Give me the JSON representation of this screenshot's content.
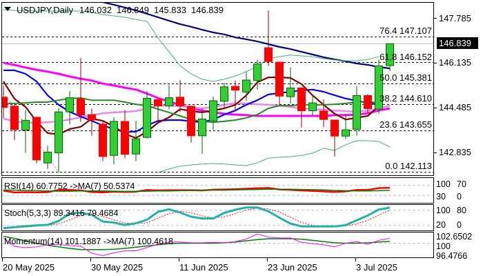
{
  "header": {
    "symbol_timeframe": "USDJPY,Daily",
    "open": "146.032",
    "high": "146.849",
    "low": "145.833",
    "close": "146.839"
  },
  "colors": {
    "bull": "#32CD32",
    "bull_edge": "#006400",
    "bear": "#FF0000",
    "bear_edge": "#8B0000"
  },
  "chart_data": {
    "type": "candlestick",
    "title": "USDJPY,Daily",
    "ylim": [
      141.9,
      148.45
    ],
    "price_ticks": [
      "147.785",
      "146.135",
      "144.485",
      "142.835"
    ],
    "price_tick_values": [
      147.785,
      146.135,
      144.485,
      142.835
    ],
    "current_price": "146.839",
    "current_price_value": 146.839,
    "date_labels": [
      "20 May 2025",
      "30 May 2025",
      "11 Jun 2025",
      "23 Jun 2025",
      "3 Jul 2025"
    ],
    "date_label_bar_index": [
      0,
      8,
      16,
      24,
      32
    ],
    "fib_levels": [
      {
        "label": "76.4 147.107",
        "value": 147.107
      },
      {
        "label": "61.8 146.152",
        "value": 146.152
      },
      {
        "label": "50.0 145.381",
        "value": 145.381
      },
      {
        "label": "38.2 144.610",
        "value": 144.61
      },
      {
        "label": "23.6 143.655",
        "value": 143.655
      },
      {
        "label": "0.0 142.113",
        "value": 142.113
      }
    ],
    "candles_ohlc": [
      [
        144.87,
        145.3,
        144.1,
        144.49
      ],
      [
        144.54,
        144.6,
        143.3,
        143.68
      ],
      [
        143.66,
        144.4,
        142.82,
        144.02
      ],
      [
        144.13,
        144.15,
        142.44,
        142.56
      ],
      [
        142.45,
        143.09,
        142.23,
        142.85
      ],
      [
        142.82,
        144.47,
        142.1,
        144.33
      ],
      [
        144.33,
        145.1,
        143.88,
        144.85
      ],
      [
        144.81,
        146.31,
        143.96,
        144.21
      ],
      [
        144.23,
        144.45,
        143.45,
        144.03
      ],
      [
        143.88,
        144.0,
        142.52,
        142.69
      ],
      [
        142.73,
        144.13,
        142.4,
        143.98
      ],
      [
        143.98,
        144.4,
        142.63,
        142.77
      ],
      [
        142.78,
        144.0,
        142.52,
        143.34
      ],
      [
        143.39,
        145.1,
        143.35,
        144.83
      ],
      [
        144.78,
        144.8,
        143.96,
        144.55
      ],
      [
        144.55,
        145.32,
        144.43,
        144.85
      ],
      [
        144.87,
        145.5,
        144.34,
        144.55
      ],
      [
        144.54,
        144.56,
        143.2,
        143.45
      ],
      [
        143.45,
        144.47,
        142.79,
        144.07
      ],
      [
        144.0,
        144.89,
        143.67,
        144.74
      ],
      [
        144.72,
        145.4,
        144.47,
        145.25
      ],
      [
        145.27,
        145.48,
        144.34,
        145.13
      ],
      [
        145.06,
        145.8,
        144.74,
        145.5
      ],
      [
        145.48,
        146.25,
        145.15,
        146.09
      ],
      [
        146.69,
        148.06,
        146.03,
        146.18
      ],
      [
        146.16,
        146.18,
        144.59,
        144.91
      ],
      [
        144.89,
        145.97,
        144.64,
        145.21
      ],
      [
        145.21,
        145.23,
        143.75,
        144.37
      ],
      [
        144.37,
        144.96,
        144.2,
        144.66
      ],
      [
        144.36,
        144.79,
        143.77,
        144.05
      ],
      [
        144.03,
        144.05,
        142.69,
        143.44
      ],
      [
        143.44,
        144.26,
        143.33,
        143.67
      ],
      [
        143.69,
        145.27,
        143.45,
        144.93
      ],
      [
        144.93,
        144.99,
        144.3,
        144.45
      ],
      [
        144.43,
        146.25,
        144.26,
        146.02
      ],
      [
        146.032,
        146.849,
        145.833,
        146.839
      ]
    ],
    "overlays": [
      {
        "name": "ma-navy",
        "color": "#000080",
        "width": 2.2,
        "values": [
          null,
          null,
          null,
          null,
          null,
          null,
          null,
          null,
          148.5,
          148.37,
          148.27,
          148.17,
          148.06,
          147.94,
          147.81,
          147.68,
          147.56,
          147.46,
          147.35,
          147.25,
          147.18,
          147.07,
          147.0,
          146.92,
          146.82,
          146.72,
          146.64,
          146.54,
          146.44,
          146.34,
          146.26,
          146.19,
          146.11,
          146.06,
          145.98,
          145.93
        ]
      },
      {
        "name": "ma-magenta",
        "color": "#FF00FF",
        "width": 3,
        "values": [
          146.13,
          146.06,
          145.96,
          145.88,
          145.81,
          145.73,
          145.63,
          145.55,
          145.48,
          145.37,
          145.3,
          145.22,
          145.15,
          145.0,
          144.84,
          144.71,
          144.59,
          144.46,
          144.38,
          144.31,
          144.26,
          144.23,
          144.21,
          144.18,
          144.18,
          144.18,
          144.18,
          144.18,
          144.18,
          144.18,
          144.21,
          144.21,
          144.23,
          144.28,
          144.38,
          144.46
        ]
      },
      {
        "name": "ma-violet",
        "color": "#EE82EE",
        "width": 2.5,
        "values": [
          144.08,
          143.98,
          143.93,
          143.93,
          143.95,
          143.98,
          144.05,
          144.13,
          144.21,
          144.28,
          144.31,
          144.33,
          144.36,
          144.46,
          144.56,
          144.56,
          144.54,
          144.49,
          144.46,
          144.51,
          144.59,
          144.64,
          144.64,
          144.61,
          144.59,
          144.56,
          144.51,
          144.46,
          144.43,
          144.41,
          144.38,
          144.36,
          144.33,
          144.38,
          144.46,
          144.56
        ]
      },
      {
        "name": "ma-blue",
        "color": "#0000FF",
        "width": 2.2,
        "values": [
          145.86,
          145.86,
          145.73,
          145.45,
          144.94,
          144.59,
          144.33,
          144.16,
          144.0,
          143.83,
          143.7,
          143.6,
          143.6,
          143.83,
          144.0,
          144.03,
          144.03,
          143.98,
          143.95,
          144.05,
          144.23,
          144.38,
          144.59,
          144.76,
          144.97,
          145.02,
          145.07,
          145.12,
          145.15,
          145.07,
          144.94,
          144.82,
          144.74,
          144.66,
          144.59,
          null
        ]
      },
      {
        "name": "ma-darkred",
        "color": "#800000",
        "width": 2.2,
        "values": [
          145.45,
          144.81,
          144.51,
          143.98,
          143.55,
          143.5,
          143.7,
          143.78,
          144.08,
          144.0,
          143.8,
          143.52,
          143.37,
          143.6,
          143.93,
          144.13,
          144.43,
          144.36,
          144.31,
          144.38,
          144.46,
          144.59,
          144.94,
          145.42,
          145.6,
          145.6,
          145.58,
          145.35,
          144.94,
          144.59,
          144.26,
          144.05,
          144.11,
          144.18,
          144.54,
          null
        ]
      },
      {
        "name": "ma-darkgreen",
        "color": "#228B22",
        "width": 2,
        "values": [
          144.64,
          144.64,
          144.66,
          144.69,
          144.69,
          144.76,
          144.82,
          144.84,
          144.76,
          144.76,
          144.76,
          144.69,
          144.61,
          144.56,
          144.43,
          144.31,
          144.18,
          144.05,
          143.98,
          143.95,
          143.98,
          144.03,
          144.11,
          144.23,
          144.46,
          144.56,
          144.56,
          144.59,
          144.59,
          144.59,
          144.61,
          144.64,
          144.69,
          144.71,
          144.66,
          null
        ]
      },
      {
        "name": "bollinger-upper",
        "color": "#3CB371",
        "width": 1,
        "values": [
          148.09,
          148.06,
          148.06,
          148.04,
          148.04,
          148.04,
          148.04,
          148.04,
          147.99,
          147.91,
          147.86,
          147.81,
          147.73,
          147.66,
          147.05,
          146.54,
          146.03,
          145.73,
          145.53,
          145.45,
          145.53,
          145.65,
          145.81,
          146.01,
          146.29,
          146.36,
          146.42,
          146.39,
          146.36,
          146.29,
          146.24,
          146.21,
          146.21,
          146.26,
          146.36,
          null
        ]
      },
      {
        "name": "bollinger-lower",
        "color": "#3CB371",
        "width": 1,
        "values": [
          null,
          null,
          null,
          null,
          null,
          null,
          null,
          null,
          null,
          null,
          null,
          null,
          null,
          null,
          142.1,
          142.23,
          142.33,
          142.38,
          142.41,
          142.43,
          142.41,
          142.38,
          142.35,
          142.46,
          142.63,
          142.66,
          142.68,
          142.73,
          142.81,
          142.99,
          142.91,
          143.12,
          143.27,
          143.27,
          143.24,
          143.04
        ]
      }
    ],
    "dotted_line": {
      "from": [
        0,
        145.02
      ],
      "to": [
        5,
        142.1
      ]
    },
    "rsi": {
      "label": "RSI(14) 60.7752  ->MA(7) 50.5374",
      "axis_labels": [
        "100",
        "70",
        "30",
        "0"
      ],
      "levels": [
        70,
        30
      ],
      "values": [
        49,
        42,
        43,
        42,
        43,
        52,
        52,
        50,
        44,
        42,
        45,
        44,
        45,
        52,
        50,
        51,
        51,
        51,
        50,
        53,
        54,
        55,
        57,
        59,
        60,
        54,
        52,
        50,
        48,
        46,
        44,
        46,
        52,
        52,
        59.5,
        60.7752
      ],
      "ma": [
        52,
        51,
        50,
        49,
        48,
        47,
        47,
        48,
        48,
        48,
        47,
        46,
        46,
        47,
        48,
        48,
        49,
        50,
        50,
        51,
        51,
        52,
        53,
        54,
        55,
        55,
        55,
        54,
        53,
        52,
        50,
        49,
        48,
        48,
        49,
        50.5374
      ]
    },
    "stoch": {
      "label": "Stoch(5,3,3) 89.3416 79.4684",
      "axis_labels": [
        "100",
        "80",
        "20",
        "0"
      ],
      "levels": [
        80,
        20
      ],
      "main": [
        8.6,
        13,
        17,
        20,
        22,
        37,
        66,
        70,
        61,
        35,
        31,
        21,
        28,
        42,
        73,
        83,
        70,
        54,
        47,
        47,
        69,
        81,
        90,
        90,
        75,
        50,
        27,
        16,
        16,
        16,
        16,
        21,
        40,
        59,
        82,
        89.3416
      ],
      "signal": [
        10,
        11,
        13,
        17,
        20,
        26,
        42,
        58,
        66,
        55,
        42,
        29,
        27,
        30,
        48,
        66,
        75,
        69,
        57,
        49,
        54,
        66,
        80,
        87,
        85,
        72,
        51,
        31,
        20,
        16,
        16,
        18,
        26,
        40,
        60,
        79.4684
      ]
    },
    "momentum": {
      "label": "Momentum(14) 101.1887  ->MA(7) 100.4618",
      "axis_labels": [
        "102.6502",
        "100",
        "96.4766"
      ],
      "range": [
        96.4766,
        102.6502
      ],
      "level": 100,
      "values": [
        101.3,
        99.2,
        98.9,
        99.1,
        99.6,
        99.7,
        99.4,
        99.3,
        97.5,
        96.9,
        97.6,
        98.1,
        98.1,
        98.9,
        99.8,
        100.3,
        100.3,
        100.1,
        100.1,
        100.2,
        100.1,
        100.4,
        101.0,
        102.3,
        101.5,
        101.3,
        101.3,
        100.2,
        99.9,
        99.6,
        99.1,
        100.0,
        100.4,
        99.7,
        100.7,
        101.1887
      ],
      "ma": [
        101.7,
        101.2,
        100.6,
        100.0,
        99.5,
        99.1,
        98.7,
        98.4,
        98.4,
        98.4,
        98.5,
        98.7,
        99.0,
        99.3,
        99.6,
        99.9,
        100.0,
        100.0,
        100.0,
        100.0,
        100.1,
        100.3,
        100.6,
        100.9,
        101.1,
        101.1,
        101.1,
        101.0,
        100.7,
        100.4,
        100.1,
        100.0,
        100.0,
        100.1,
        100.3,
        100.4618
      ]
    }
  }
}
